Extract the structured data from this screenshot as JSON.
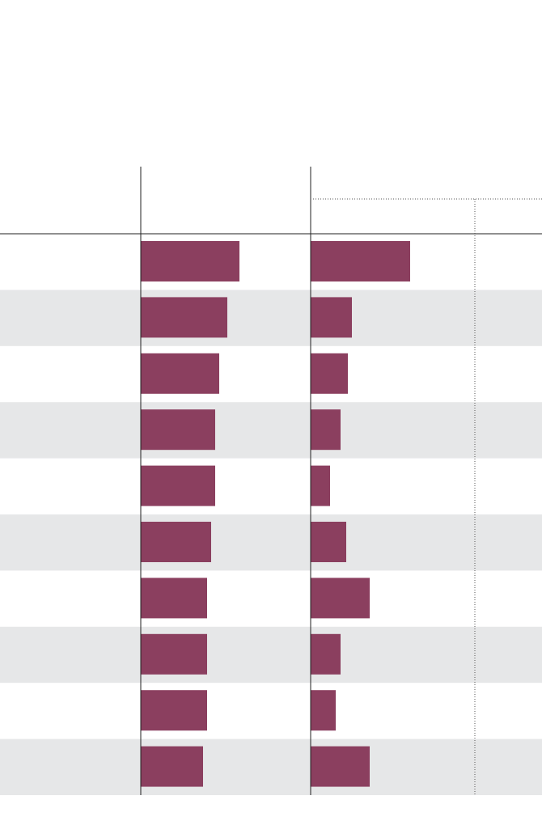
{
  "chart_data": [
    {
      "type": "bar",
      "orientation": "horizontal",
      "color": "#8b3f5f",
      "xlim": [
        0,
        210
      ],
      "values": [
        122,
        107,
        97,
        92,
        92,
        87,
        82,
        82,
        82,
        77
      ]
    },
    {
      "type": "bar",
      "orientation": "horizontal",
      "color": "#8b3f5f",
      "xlim": [
        0,
        286
      ],
      "values": [
        123,
        51,
        46,
        37,
        24,
        44,
        73,
        37,
        31,
        73
      ],
      "reference_line": 203
    }
  ]
}
